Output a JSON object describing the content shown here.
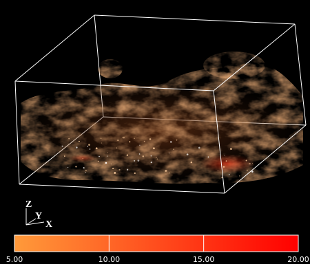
{
  "scene": {
    "type": "3d-volume-rendering",
    "background": "#000000",
    "box_color": "#ffffff",
    "volume_colors": [
      "#5a2a10",
      "#8a4520",
      "#c0642c",
      "#e0a070"
    ],
    "hotspot_color": "#ff3a1a"
  },
  "axes": {
    "z_label": "Z",
    "y_label": "Y",
    "x_label": "X"
  },
  "colorbar": {
    "min": 5.0,
    "max": 20.0,
    "gradient": [
      "#ff9a3a",
      "#ff0000"
    ],
    "divider_values": [
      10.0,
      15.0
    ],
    "ticks": [
      {
        "value": 5.0,
        "label": "5.00"
      },
      {
        "value": 10.0,
        "label": "10.00"
      },
      {
        "value": 15.0,
        "label": "15.00"
      },
      {
        "value": 20.0,
        "label": "20.00"
      }
    ]
  }
}
